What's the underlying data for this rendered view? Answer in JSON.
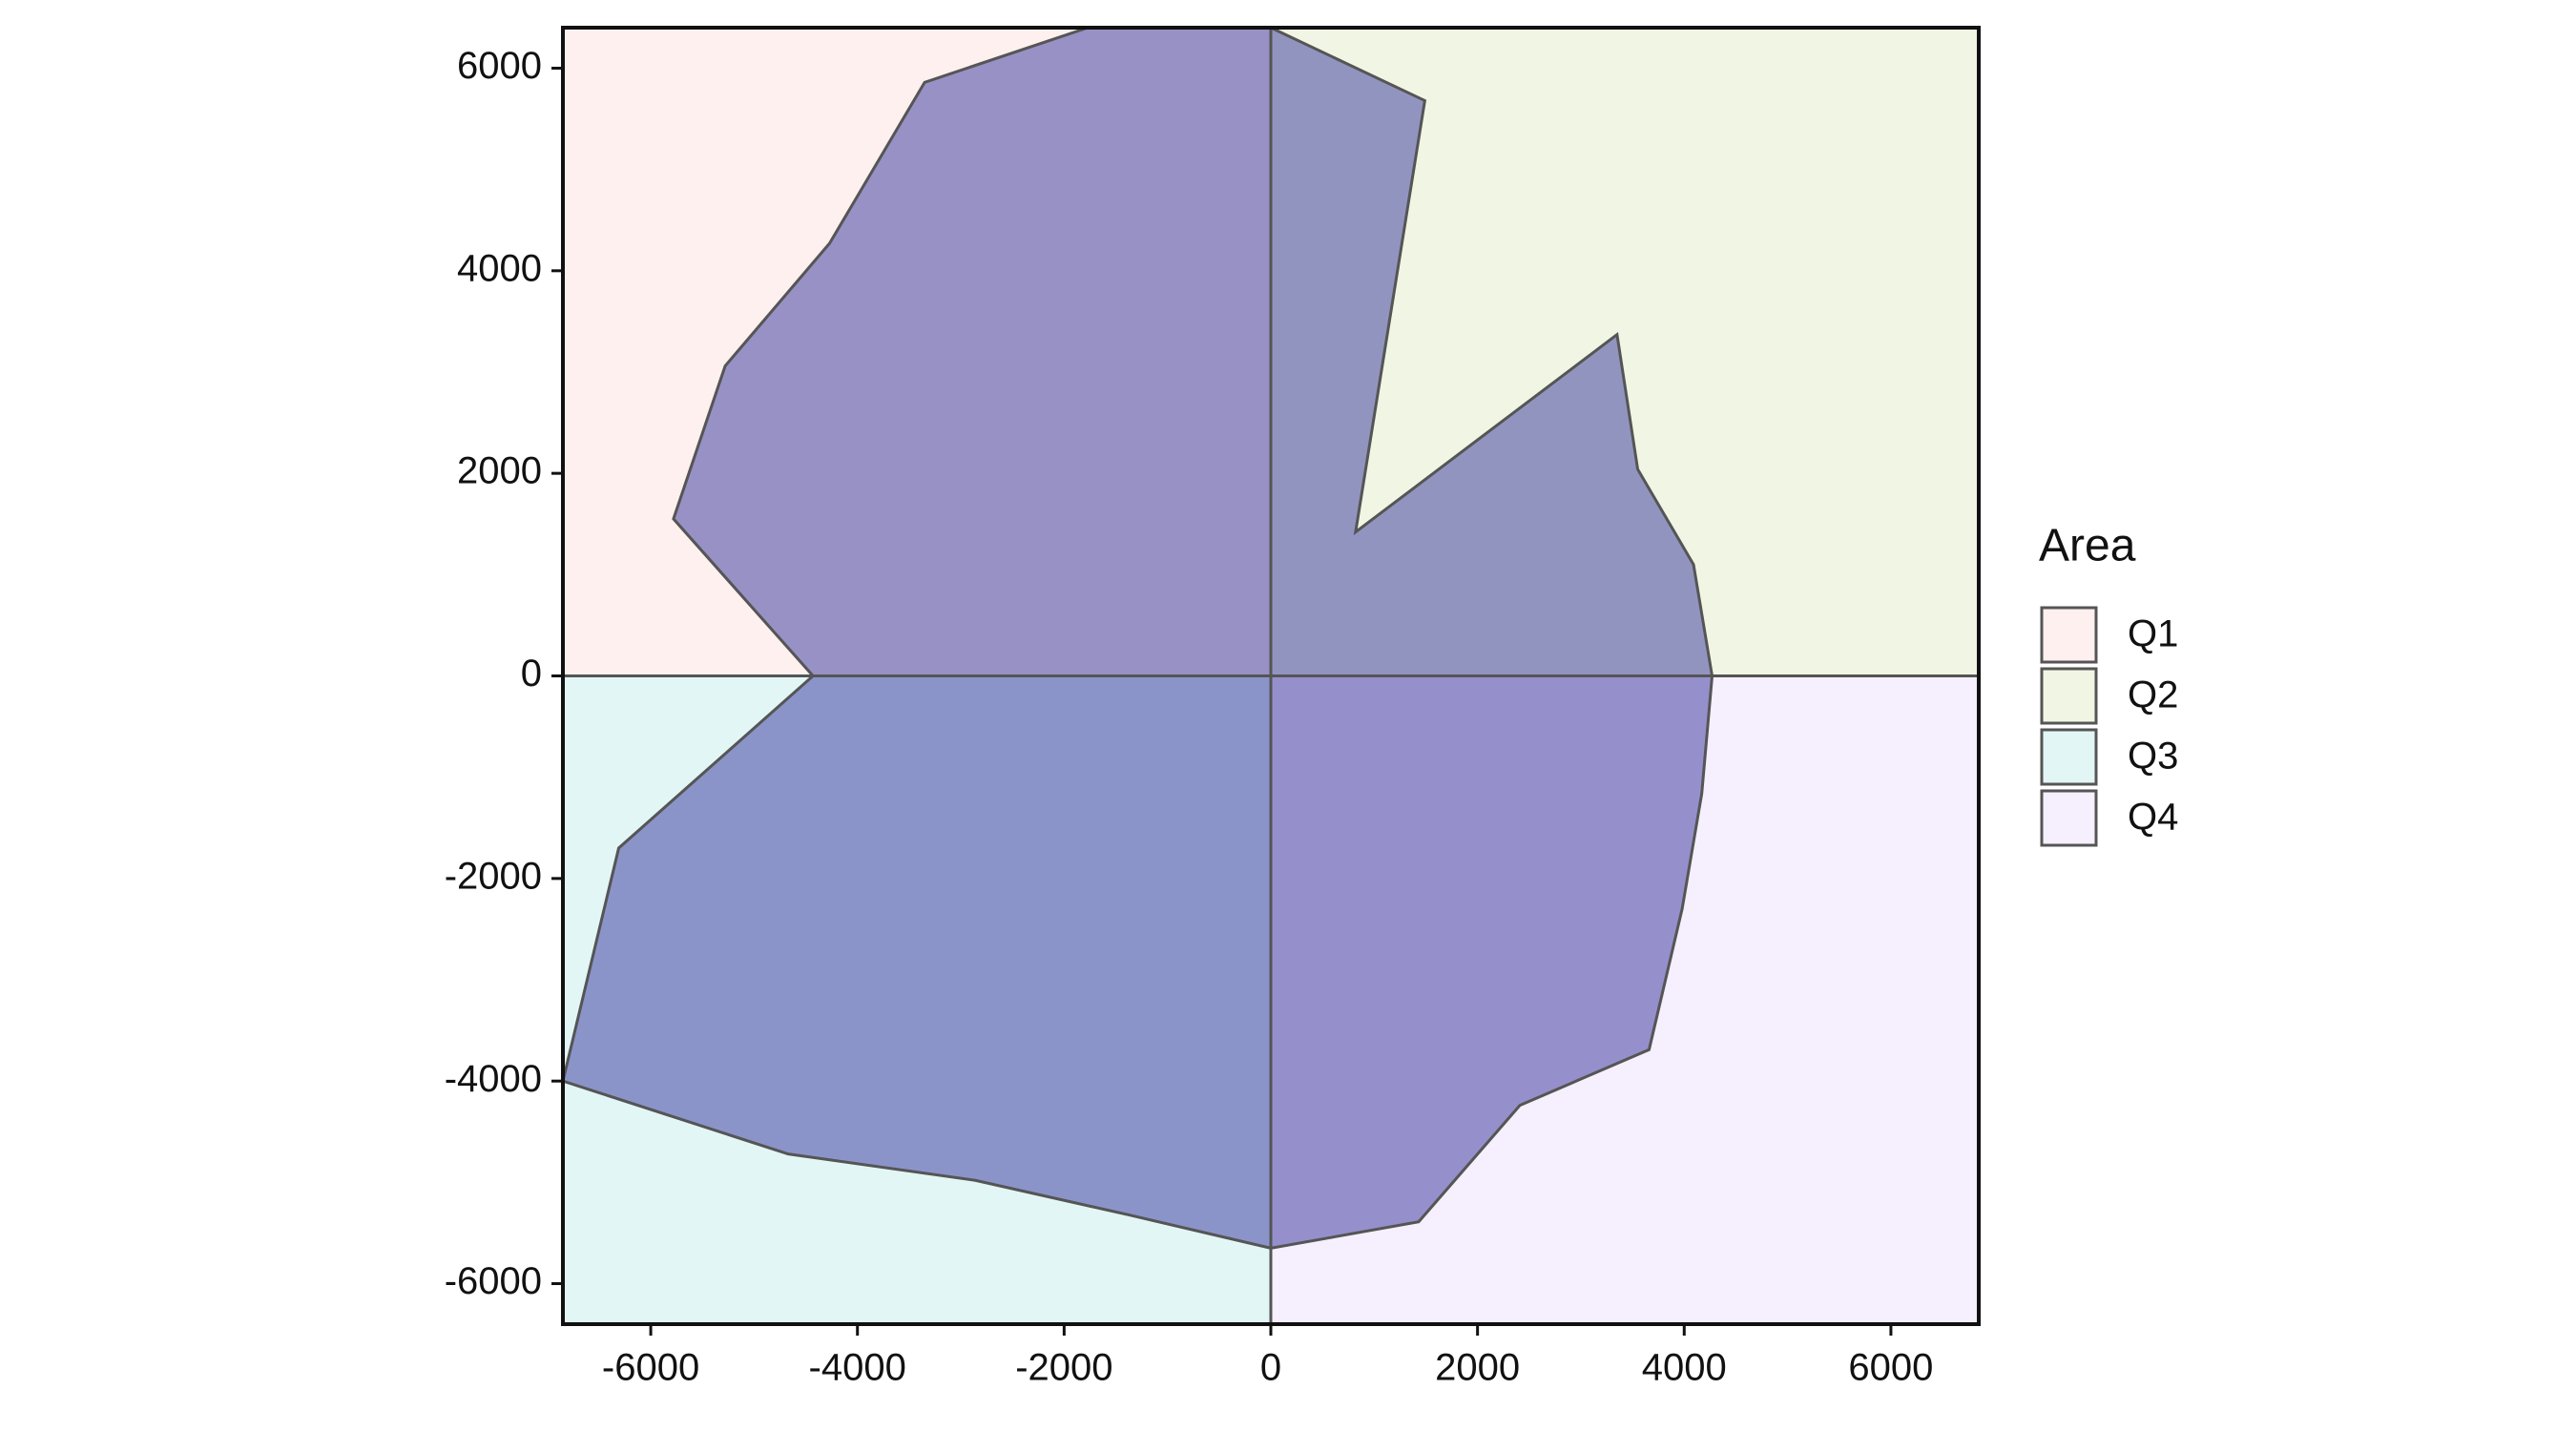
{
  "chart_data": {
    "type": "polygon",
    "x": [
      0,
      1490,
      820,
      3350,
      3550,
      4090,
      4270,
      4170,
      3980,
      3660,
      2410,
      1430,
      0,
      -1380,
      -2860,
      -4670,
      -6850,
      -6310,
      -4430,
      -5780,
      -5280,
      -4270,
      -3350,
      -1770
    ],
    "values": [
      6400,
      5680,
      1420,
      3370,
      2040,
      1100,
      0,
      -1160,
      -2300,
      -3690,
      -4240,
      -5390,
      -5650,
      -5320,
      -4980,
      -4720,
      -4000,
      -1700,
      0,
      1550,
      3060,
      4270,
      5860,
      6400
    ],
    "color": "#33329b",
    "xlim": [
      -6850,
      6850
    ],
    "ylim": [
      -6400,
      6400
    ],
    "xticks": [
      -6000,
      -4000,
      -2000,
      0,
      2000,
      4000,
      6000
    ],
    "yticks": [
      -6000,
      -4000,
      -2000,
      0,
      2000,
      4000,
      6000
    ],
    "legend": {
      "title": "Area",
      "entries": [
        {
          "name": "Q1",
          "color": "#fdf0ef"
        },
        {
          "name": "Q2",
          "color": "#f1f6e4"
        },
        {
          "name": "Q3",
          "color": "#e3f6f6"
        },
        {
          "name": "Q4",
          "color": "#f6effd"
        }
      ]
    }
  }
}
